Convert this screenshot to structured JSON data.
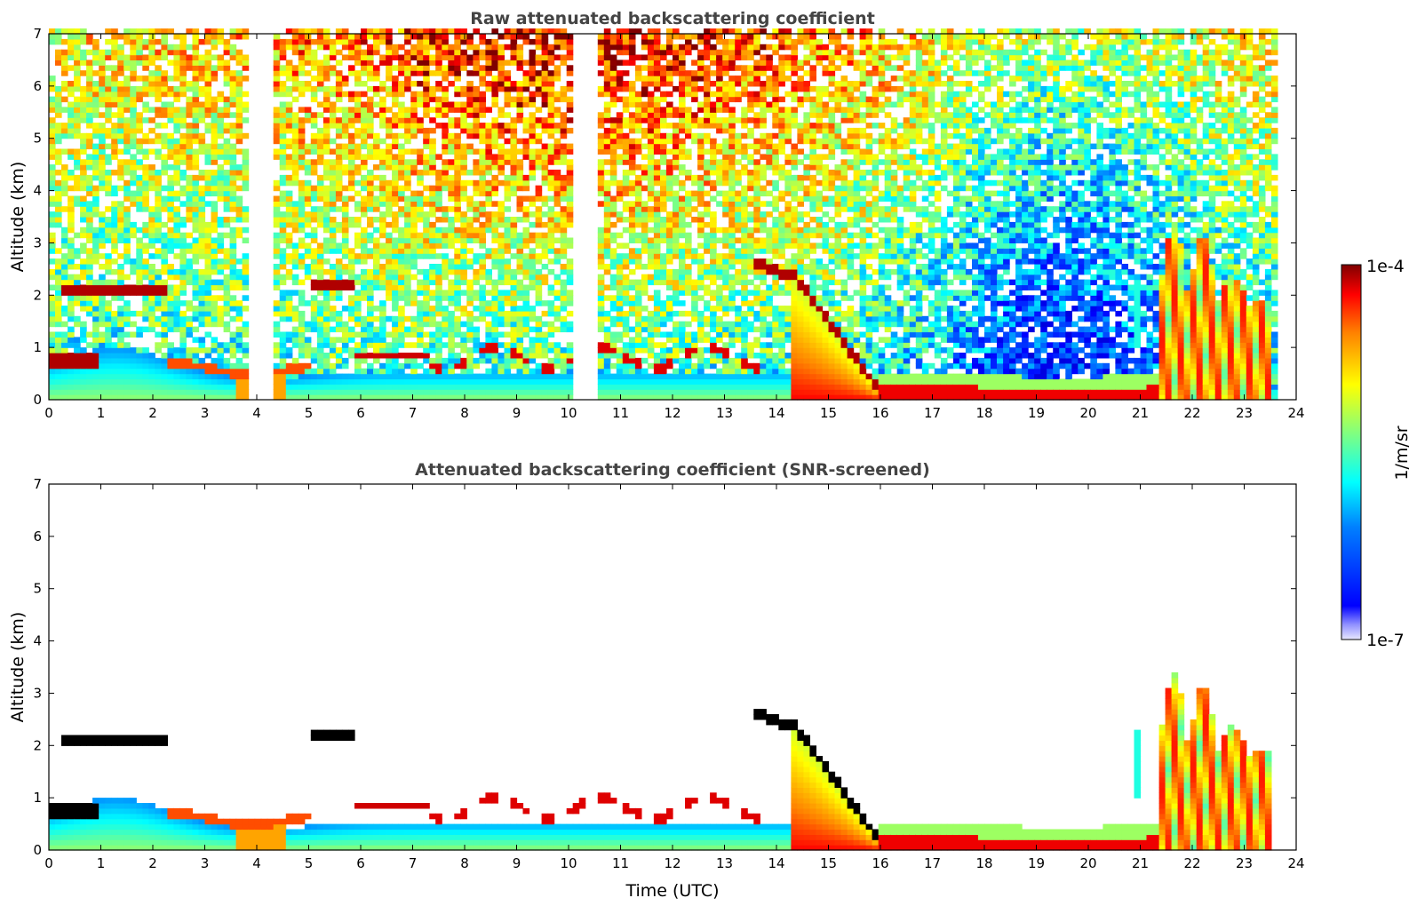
{
  "chart_data": [
    {
      "type": "heatmap",
      "title": "Raw attenuated backscattering coefficient",
      "xlabel": "",
      "ylabel": "Altitude (km)",
      "xlim": [
        0,
        24
      ],
      "ylim": [
        0,
        7
      ],
      "xticks": [
        "0",
        "1",
        "2",
        "3",
        "4",
        "5",
        "6",
        "7",
        "8",
        "9",
        "10",
        "11",
        "12",
        "13",
        "14",
        "15",
        "16",
        "17",
        "18",
        "19",
        "20",
        "21",
        "22",
        "23",
        "24"
      ],
      "yticks": [
        "0",
        "1",
        "2",
        "3",
        "4",
        "5",
        "6",
        "7"
      ],
      "data_end_hour": 23.55,
      "screened": false,
      "features": [
        {
          "name": "low cloud layer",
          "x": [
            0.0,
            1.0
          ],
          "y": [
            0.65,
            0.85
          ]
        },
        {
          "name": "cloud layer",
          "x": [
            0.3,
            2.3
          ],
          "y": [
            2.0,
            2.25
          ]
        },
        {
          "name": "cloud layer",
          "x": [
            5.0,
            5.9
          ],
          "y": [
            2.1,
            2.3
          ]
        },
        {
          "name": "cloud layer",
          "x": [
            5.9,
            7.3
          ],
          "y": [
            0.75,
            0.95
          ]
        },
        {
          "name": "broken cloud layer",
          "x": [
            7.3,
            13.9
          ],
          "y": [
            0.6,
            1.1
          ]
        },
        {
          "name": "descending cloud",
          "x": [
            13.5,
            14.3
          ],
          "y": [
            2.35,
            2.7
          ]
        },
        {
          "name": "descending plume",
          "x": [
            14.3,
            16.0
          ],
          "y": [
            0.2,
            2.4
          ]
        },
        {
          "name": "low cloud base",
          "x": [
            16.0,
            21.3
          ],
          "y": [
            0.05,
            0.35
          ]
        },
        {
          "name": "convective plumes",
          "x": [
            21.4,
            23.55
          ],
          "y": [
            0.0,
            3.3
          ]
        }
      ],
      "gaps_hours": [
        3.9,
        4.05,
        4.2,
        10.1,
        10.25,
        10.4
      ]
    },
    {
      "type": "heatmap",
      "title": "Attenuated backscattering coefficient (SNR-screened)",
      "xlabel": "Time (UTC)",
      "ylabel": "Altitude (km)",
      "xlim": [
        0,
        24
      ],
      "ylim": [
        0,
        7
      ],
      "xticks": [
        "0",
        "1",
        "2",
        "3",
        "4",
        "5",
        "6",
        "7",
        "8",
        "9",
        "10",
        "11",
        "12",
        "13",
        "14",
        "15",
        "16",
        "17",
        "18",
        "19",
        "20",
        "21",
        "22",
        "23",
        "24"
      ],
      "yticks": [
        "0",
        "1",
        "2",
        "3",
        "4",
        "5",
        "6",
        "7"
      ],
      "data_end_hour": 23.55,
      "screened": true,
      "features": [
        {
          "name": "low cloud layer",
          "x": [
            0.0,
            1.0
          ],
          "y": [
            0.65,
            0.85
          ]
        },
        {
          "name": "cloud layer",
          "x": [
            0.3,
            2.3
          ],
          "y": [
            2.0,
            2.25
          ]
        },
        {
          "name": "cloud layer",
          "x": [
            5.0,
            5.9
          ],
          "y": [
            2.1,
            2.3
          ]
        },
        {
          "name": "cloud layer",
          "x": [
            5.9,
            7.3
          ],
          "y": [
            0.75,
            0.95
          ]
        },
        {
          "name": "broken cloud layer",
          "x": [
            7.3,
            13.9
          ],
          "y": [
            0.6,
            1.1
          ]
        },
        {
          "name": "descending cloud",
          "x": [
            13.5,
            14.3
          ],
          "y": [
            2.35,
            2.7
          ]
        },
        {
          "name": "descending plume",
          "x": [
            14.3,
            16.0
          ],
          "y": [
            0.2,
            2.4
          ]
        },
        {
          "name": "low cloud base",
          "x": [
            16.0,
            21.3
          ],
          "y": [
            0.05,
            0.35
          ]
        },
        {
          "name": "convective plumes",
          "x": [
            21.4,
            23.55
          ],
          "y": [
            0.0,
            3.3
          ]
        }
      ]
    }
  ],
  "colorbar": {
    "label": "1/m/sr",
    "max_label": "1e-4",
    "min_label": "1e-7",
    "scale": "log",
    "range": [
      1e-07,
      0.0001
    ]
  }
}
